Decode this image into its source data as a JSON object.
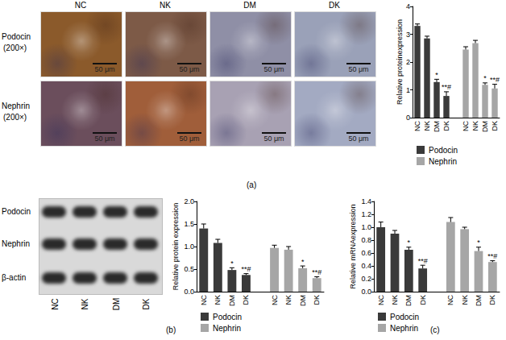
{
  "figure": {
    "panel_labels": [
      "(a)",
      "(b)",
      "(c)"
    ],
    "micrographs": {
      "columns": [
        "NC",
        "NK",
        "DM",
        "DK"
      ],
      "rows": [
        {
          "stain": "Podocin",
          "magnification": "(200×)"
        },
        {
          "stain": "Nephrin",
          "magnification": "(200×)"
        }
      ],
      "scale_bar": "50 μm"
    },
    "western_blot": {
      "rows": [
        "Podocin",
        "Nephrin",
        "β-actin"
      ],
      "lanes": [
        "NC",
        "NK",
        "DM",
        "DK"
      ]
    }
  },
  "chart_data": [
    {
      "type": "bar",
      "ylabel": "Relative proteinexpression",
      "categories": [
        "NC",
        "NK",
        "DM",
        "DK",
        null,
        "NC",
        "NK",
        "DM",
        "DK"
      ],
      "ylim": [
        0,
        4
      ],
      "yticks": [
        0,
        1,
        2,
        3,
        4
      ],
      "legend": "bottom",
      "series": [
        {
          "name": "Podocin",
          "color": "#3a3a3a",
          "values": [
            3.3,
            2.85,
            1.28,
            0.78,
            null,
            null,
            null,
            null,
            null
          ],
          "errors": [
            0.07,
            0.08,
            0.1,
            0.15,
            null,
            null,
            null,
            null,
            null
          ],
          "annotations": [
            null,
            null,
            "*",
            "**#",
            null,
            null,
            null,
            null,
            null
          ]
        },
        {
          "name": "Nephrin",
          "color": "#a6a6a6",
          "values": [
            null,
            null,
            null,
            null,
            null,
            2.45,
            2.68,
            1.18,
            1.05
          ],
          "errors": [
            null,
            null,
            null,
            null,
            null,
            0.1,
            0.1,
            0.07,
            0.15
          ],
          "annotations": [
            null,
            null,
            null,
            null,
            null,
            null,
            null,
            "*",
            "**#"
          ]
        }
      ]
    },
    {
      "type": "bar",
      "ylabel": "Relative protein expression",
      "categories": [
        "NC",
        "NK",
        "DM",
        "DK",
        null,
        "NC",
        "NK",
        "DM",
        "DK"
      ],
      "ylim": [
        0,
        2
      ],
      "yticks": [
        {
          "value": 0,
          "label": "0.0"
        },
        0.5,
        {
          "value": 1,
          "label": "1.0"
        },
        1.5,
        {
          "value": 2,
          "label": "2.0"
        }
      ],
      "legend": "bottom",
      "series": [
        {
          "name": "Podocin",
          "color": "#3a3a3a",
          "values": [
            1.4,
            1.08,
            0.48,
            0.37,
            null,
            null,
            null,
            null,
            null
          ],
          "errors": [
            0.1,
            0.08,
            0.05,
            0.03,
            null,
            null,
            null,
            null,
            null
          ],
          "annotations": [
            null,
            null,
            "*",
            "**#",
            null,
            null,
            null,
            null,
            null
          ]
        },
        {
          "name": "Nephrin",
          "color": "#a6a6a6",
          "values": [
            null,
            null,
            null,
            null,
            null,
            0.97,
            0.93,
            0.52,
            0.3
          ],
          "errors": [
            null,
            null,
            null,
            null,
            null,
            0.06,
            0.07,
            0.05,
            0.03
          ],
          "annotations": [
            null,
            null,
            null,
            null,
            null,
            null,
            null,
            "*",
            "**#"
          ]
        }
      ]
    },
    {
      "type": "bar",
      "ylabel": "Relative mRNAexpression",
      "categories": [
        "NC",
        "NK",
        "DM",
        "DK",
        null,
        "NC",
        "NK",
        "DM",
        "DK"
      ],
      "ylim": [
        0,
        1.4
      ],
      "yticks": [
        {
          "value": 0,
          "label": "0.0"
        },
        0.2,
        0.4,
        0.6,
        0.8,
        {
          "value": 1,
          "label": "1.0"
        },
        1.2,
        1.4
      ],
      "legend": "bottom",
      "series": [
        {
          "name": "Podocin",
          "color": "#3a3a3a",
          "values": [
            1.0,
            0.9,
            0.65,
            0.36,
            null,
            null,
            null,
            null,
            null
          ],
          "errors": [
            0.08,
            0.05,
            0.04,
            0.05,
            null,
            null,
            null,
            null,
            null
          ],
          "annotations": [
            null,
            null,
            "*",
            "**#",
            null,
            null,
            null,
            null,
            null
          ]
        },
        {
          "name": "Nephrin",
          "color": "#a6a6a6",
          "values": [
            null,
            null,
            null,
            null,
            null,
            1.08,
            0.97,
            0.63,
            0.46
          ],
          "errors": [
            null,
            null,
            null,
            null,
            null,
            0.07,
            0.03,
            0.06,
            0.02
          ],
          "annotations": [
            null,
            null,
            null,
            null,
            null,
            null,
            null,
            "*",
            "**#"
          ]
        }
      ]
    }
  ]
}
